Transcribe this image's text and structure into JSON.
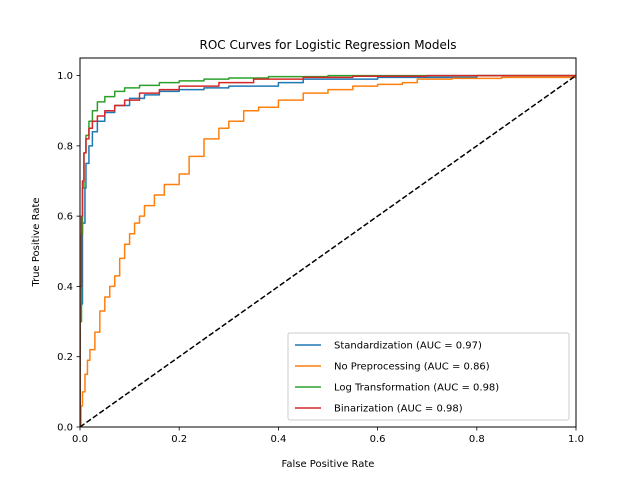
{
  "chart_data": {
    "type": "line",
    "title": "ROC Curves for Logistic Regression Models",
    "xlabel": "False Positive Rate",
    "ylabel": "True Positive Rate",
    "xlim": [
      0,
      1
    ],
    "ylim": [
      0,
      1.05
    ],
    "grid": false,
    "legend_position": "lower-right",
    "x_ticks": [
      "0.0",
      "0.2",
      "0.4",
      "0.6",
      "0.8",
      "1.0"
    ],
    "y_ticks": [
      "0.0",
      "0.2",
      "0.4",
      "0.6",
      "0.8",
      "1.0"
    ],
    "series": [
      {
        "name": "Standardization (AUC = 0.97)",
        "color": "#1f77b4",
        "x": [
          0,
          0,
          0.005,
          0.005,
          0.01,
          0.012,
          0.018,
          0.025,
          0.035,
          0.05,
          0.07,
          0.1,
          0.13,
          0.16,
          0.2,
          0.25,
          0.3,
          0.4,
          0.45,
          0.6,
          0.8,
          1.0
        ],
        "y": [
          0,
          0.35,
          0.48,
          0.58,
          0.68,
          0.75,
          0.8,
          0.84,
          0.87,
          0.895,
          0.915,
          0.935,
          0.945,
          0.955,
          0.96,
          0.965,
          0.97,
          0.98,
          0.99,
          0.995,
          1.0,
          1.0
        ]
      },
      {
        "name": "No Preprocessing (AUC = 0.86)",
        "color": "#ff7f0e",
        "x": [
          0,
          0.002,
          0.005,
          0.01,
          0.015,
          0.02,
          0.03,
          0.04,
          0.05,
          0.06,
          0.07,
          0.08,
          0.09,
          0.1,
          0.11,
          0.12,
          0.13,
          0.15,
          0.17,
          0.2,
          0.22,
          0.25,
          0.28,
          0.3,
          0.33,
          0.36,
          0.4,
          0.45,
          0.5,
          0.55,
          0.6,
          0.65,
          0.68,
          0.75,
          0.85,
          1.0
        ],
        "y": [
          0,
          0.06,
          0.1,
          0.15,
          0.19,
          0.22,
          0.27,
          0.33,
          0.37,
          0.4,
          0.43,
          0.48,
          0.52,
          0.55,
          0.58,
          0.6,
          0.63,
          0.66,
          0.69,
          0.72,
          0.77,
          0.82,
          0.85,
          0.87,
          0.9,
          0.91,
          0.93,
          0.95,
          0.96,
          0.97,
          0.975,
          0.98,
          0.99,
          0.992,
          0.995,
          1.0
        ]
      },
      {
        "name": "Log Transformation (AUC = 0.98)",
        "color": "#2ca02c",
        "x": [
          0,
          0,
          0.003,
          0.005,
          0.008,
          0.012,
          0.018,
          0.025,
          0.035,
          0.05,
          0.07,
          0.09,
          0.12,
          0.16,
          0.2,
          0.25,
          0.3,
          0.38,
          0.5,
          1.0
        ],
        "y": [
          0,
          0.3,
          0.55,
          0.68,
          0.78,
          0.83,
          0.87,
          0.9,
          0.925,
          0.94,
          0.955,
          0.965,
          0.972,
          0.98,
          0.985,
          0.99,
          0.993,
          0.997,
          1.0,
          1.0
        ]
      },
      {
        "name": "Binarization (AUC = 0.98)",
        "color": "#d62728",
        "x": [
          0,
          0,
          0.003,
          0.005,
          0.008,
          0.012,
          0.018,
          0.025,
          0.035,
          0.05,
          0.07,
          0.09,
          0.12,
          0.16,
          0.2,
          0.28,
          0.35,
          0.45,
          0.55,
          0.7,
          1.0
        ],
        "y": [
          0,
          0.4,
          0.6,
          0.7,
          0.78,
          0.82,
          0.85,
          0.87,
          0.885,
          0.9,
          0.915,
          0.93,
          0.95,
          0.96,
          0.97,
          0.98,
          0.99,
          0.995,
          0.998,
          1.0,
          1.0
        ]
      }
    ],
    "reference_line": {
      "x": [
        0,
        1
      ],
      "y": [
        0,
        1
      ],
      "color": "#000000",
      "style": "dashed"
    }
  }
}
